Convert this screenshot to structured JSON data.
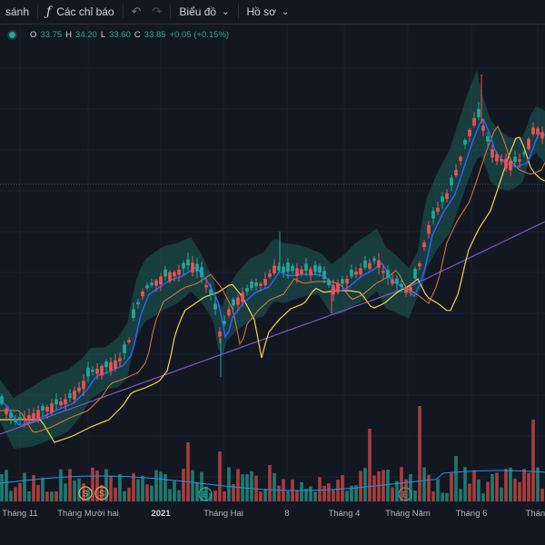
{
  "toolbar": {
    "compare_label": "sánh",
    "indicators_icon": "fx-icon",
    "indicators_label": "Các chỉ báo",
    "undo_icon": "undo-icon",
    "redo_icon": "redo-icon",
    "chart_label": "Biểu đồ",
    "profile_label": "Hồ sơ"
  },
  "legend": {
    "o_key": "O",
    "o_val": "33.75",
    "h_key": "H",
    "h_val": "34.20",
    "l_key": "L",
    "l_val": "33.60",
    "c_key": "C",
    "c_val": "33.85",
    "change": "+0.05 (+0.15%)"
  },
  "colors": {
    "background": "#131722",
    "up": "#26a69a",
    "down": "#ef5350",
    "band_fill": "#1e5d57",
    "ma_fast": "#2962ff",
    "ma_mid": "#e07b39",
    "ma_slow": "#f3d34a",
    "ma_long": "#7e57c2",
    "vol_ma": "#2196f3"
  },
  "x_axis": [
    "Tháng 11",
    "Tháng Mười hai",
    "2021",
    "Tháng Hai",
    "8",
    "Tháng 4",
    "Tháng Năm",
    "Tháng 6",
    "Tháng"
  ],
  "event_markers": [
    {
      "label": "S",
      "color": "#e0a96d"
    },
    {
      "label": "S",
      "color": "#e0a96d"
    },
    {
      "label": "E",
      "color": "#26a69a"
    },
    {
      "label": "E",
      "color": "#26a69a"
    }
  ],
  "chart_data": {
    "type": "candlestick",
    "last_price": {
      "open": 33.75,
      "high": 34.2,
      "low": 33.6,
      "close": 33.85,
      "change": 0.05,
      "change_pct": 0.15
    },
    "indicators": [
      "Bollinger Bands",
      "Moving Average (fast)",
      "Moving Average (mid)",
      "Moving Average (slow)",
      "Moving Average (long)",
      "Volume",
      "Volume MA"
    ],
    "grid": true
  }
}
